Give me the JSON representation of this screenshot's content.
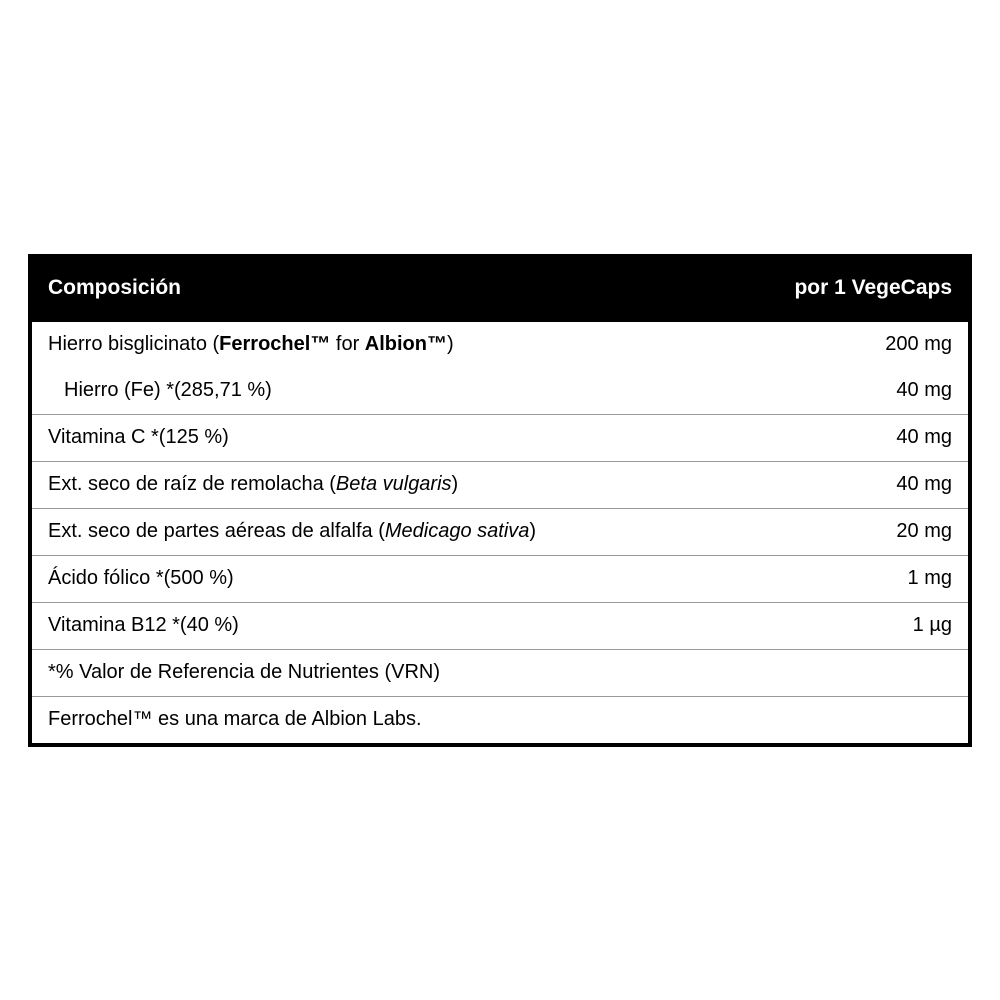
{
  "table": {
    "header": {
      "left": "Composición",
      "right": "por 1 VegeCaps"
    },
    "rows": [
      {
        "label_prefix": "Hierro bisglicinato (",
        "label_bold1": "Ferrochel™",
        "label_mid": " for ",
        "label_bold2": "Albion™",
        "label_suffix": ")",
        "value": "200 mg",
        "has_bold": true,
        "no_border": true,
        "indent": false
      },
      {
        "label": "Hierro (Fe) *(285,71 %)",
        "value": "40 mg",
        "indent": true
      },
      {
        "label": "Vitamina C *(125 %)",
        "value": "40 mg"
      },
      {
        "label_prefix": "Ext. seco de raíz de remolacha (",
        "label_italic": "Beta vulgaris",
        "label_suffix": ")",
        "value": "40 mg",
        "has_italic": true
      },
      {
        "label_prefix": "Ext. seco de partes aéreas de alfalfa (",
        "label_italic": "Medicago sativa",
        "label_suffix": ")",
        "value": "20 mg",
        "has_italic": true
      },
      {
        "label": "Ácido fólico *(500 %)",
        "value": "1 mg"
      },
      {
        "label": "Vitamina B12 *(40 %)",
        "value": "1 µg"
      }
    ],
    "footers": [
      "*% Valor de Referencia de Nutrientes (VRN)",
      "Ferrochel™ es una marca de Albion Labs."
    ],
    "colors": {
      "header_bg": "#000000",
      "header_text": "#ffffff",
      "body_bg": "#ffffff",
      "text": "#000000",
      "border": "#000000",
      "row_border": "#999999"
    },
    "typography": {
      "header_fontsize": 21,
      "body_fontsize": 20,
      "font_family": "Arial, Helvetica, sans-serif"
    }
  }
}
